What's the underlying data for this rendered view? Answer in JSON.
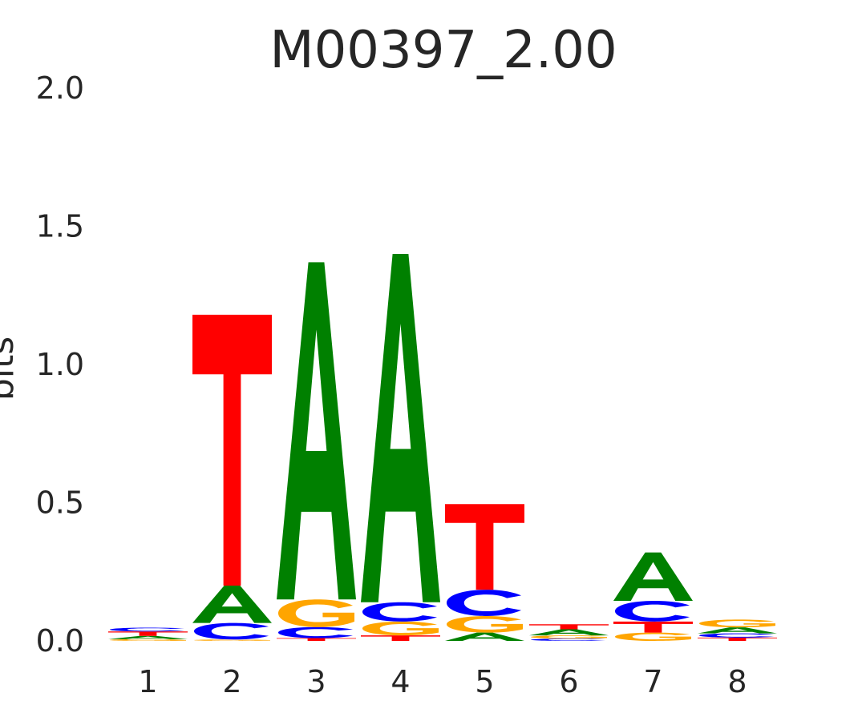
{
  "chart_data": {
    "type": "sequence-logo",
    "title": "M00397_2.00",
    "ylabel": "bits",
    "xlabel": "",
    "ylim": [
      0,
      2
    ],
    "yticks": [
      "0.0",
      "0.5",
      "1.0",
      "1.5",
      "2.0"
    ],
    "grid": false,
    "colors": {
      "A": "#008000",
      "C": "#0000ff",
      "G": "#ffa500",
      "T": "#ff0000"
    },
    "positions": [
      {
        "label": "1",
        "letters": [
          {
            "base": "G",
            "bits": 0.006
          },
          {
            "base": "A",
            "bits": 0.012
          },
          {
            "base": "T",
            "bits": 0.016
          },
          {
            "base": "C",
            "bits": 0.014
          }
        ]
      },
      {
        "label": "2",
        "letters": [
          {
            "base": "G",
            "bits": 0.005
          },
          {
            "base": "C",
            "bits": 0.06
          },
          {
            "base": "A",
            "bits": 0.135
          },
          {
            "base": "T",
            "bits": 0.98
          }
        ]
      },
      {
        "label": "3",
        "letters": [
          {
            "base": "T",
            "bits": 0.01
          },
          {
            "base": "C",
            "bits": 0.04
          },
          {
            "base": "G",
            "bits": 0.1
          },
          {
            "base": "A",
            "bits": 1.22
          }
        ]
      },
      {
        "label": "4",
        "letters": [
          {
            "base": "T",
            "bits": 0.02
          },
          {
            "base": "G",
            "bits": 0.05
          },
          {
            "base": "C",
            "bits": 0.07
          },
          {
            "base": "A",
            "bits": 1.26
          }
        ]
      },
      {
        "label": "5",
        "letters": [
          {
            "base": "A",
            "bits": 0.03
          },
          {
            "base": "G",
            "bits": 0.06
          },
          {
            "base": "C",
            "bits": 0.095
          },
          {
            "base": "T",
            "bits": 0.31
          }
        ]
      },
      {
        "label": "6",
        "letters": [
          {
            "base": "C",
            "bits": 0.008
          },
          {
            "base": "G",
            "bits": 0.012
          },
          {
            "base": "A",
            "bits": 0.022
          },
          {
            "base": "T",
            "bits": 0.018
          }
        ]
      },
      {
        "label": "7",
        "letters": [
          {
            "base": "G",
            "bits": 0.03
          },
          {
            "base": "T",
            "bits": 0.04
          },
          {
            "base": "C",
            "bits": 0.075
          },
          {
            "base": "A",
            "bits": 0.175
          }
        ]
      },
      {
        "label": "8",
        "letters": [
          {
            "base": "T",
            "bits": 0.012
          },
          {
            "base": "C",
            "bits": 0.015
          },
          {
            "base": "A",
            "bits": 0.022
          },
          {
            "base": "G",
            "bits": 0.028
          }
        ]
      }
    ]
  }
}
